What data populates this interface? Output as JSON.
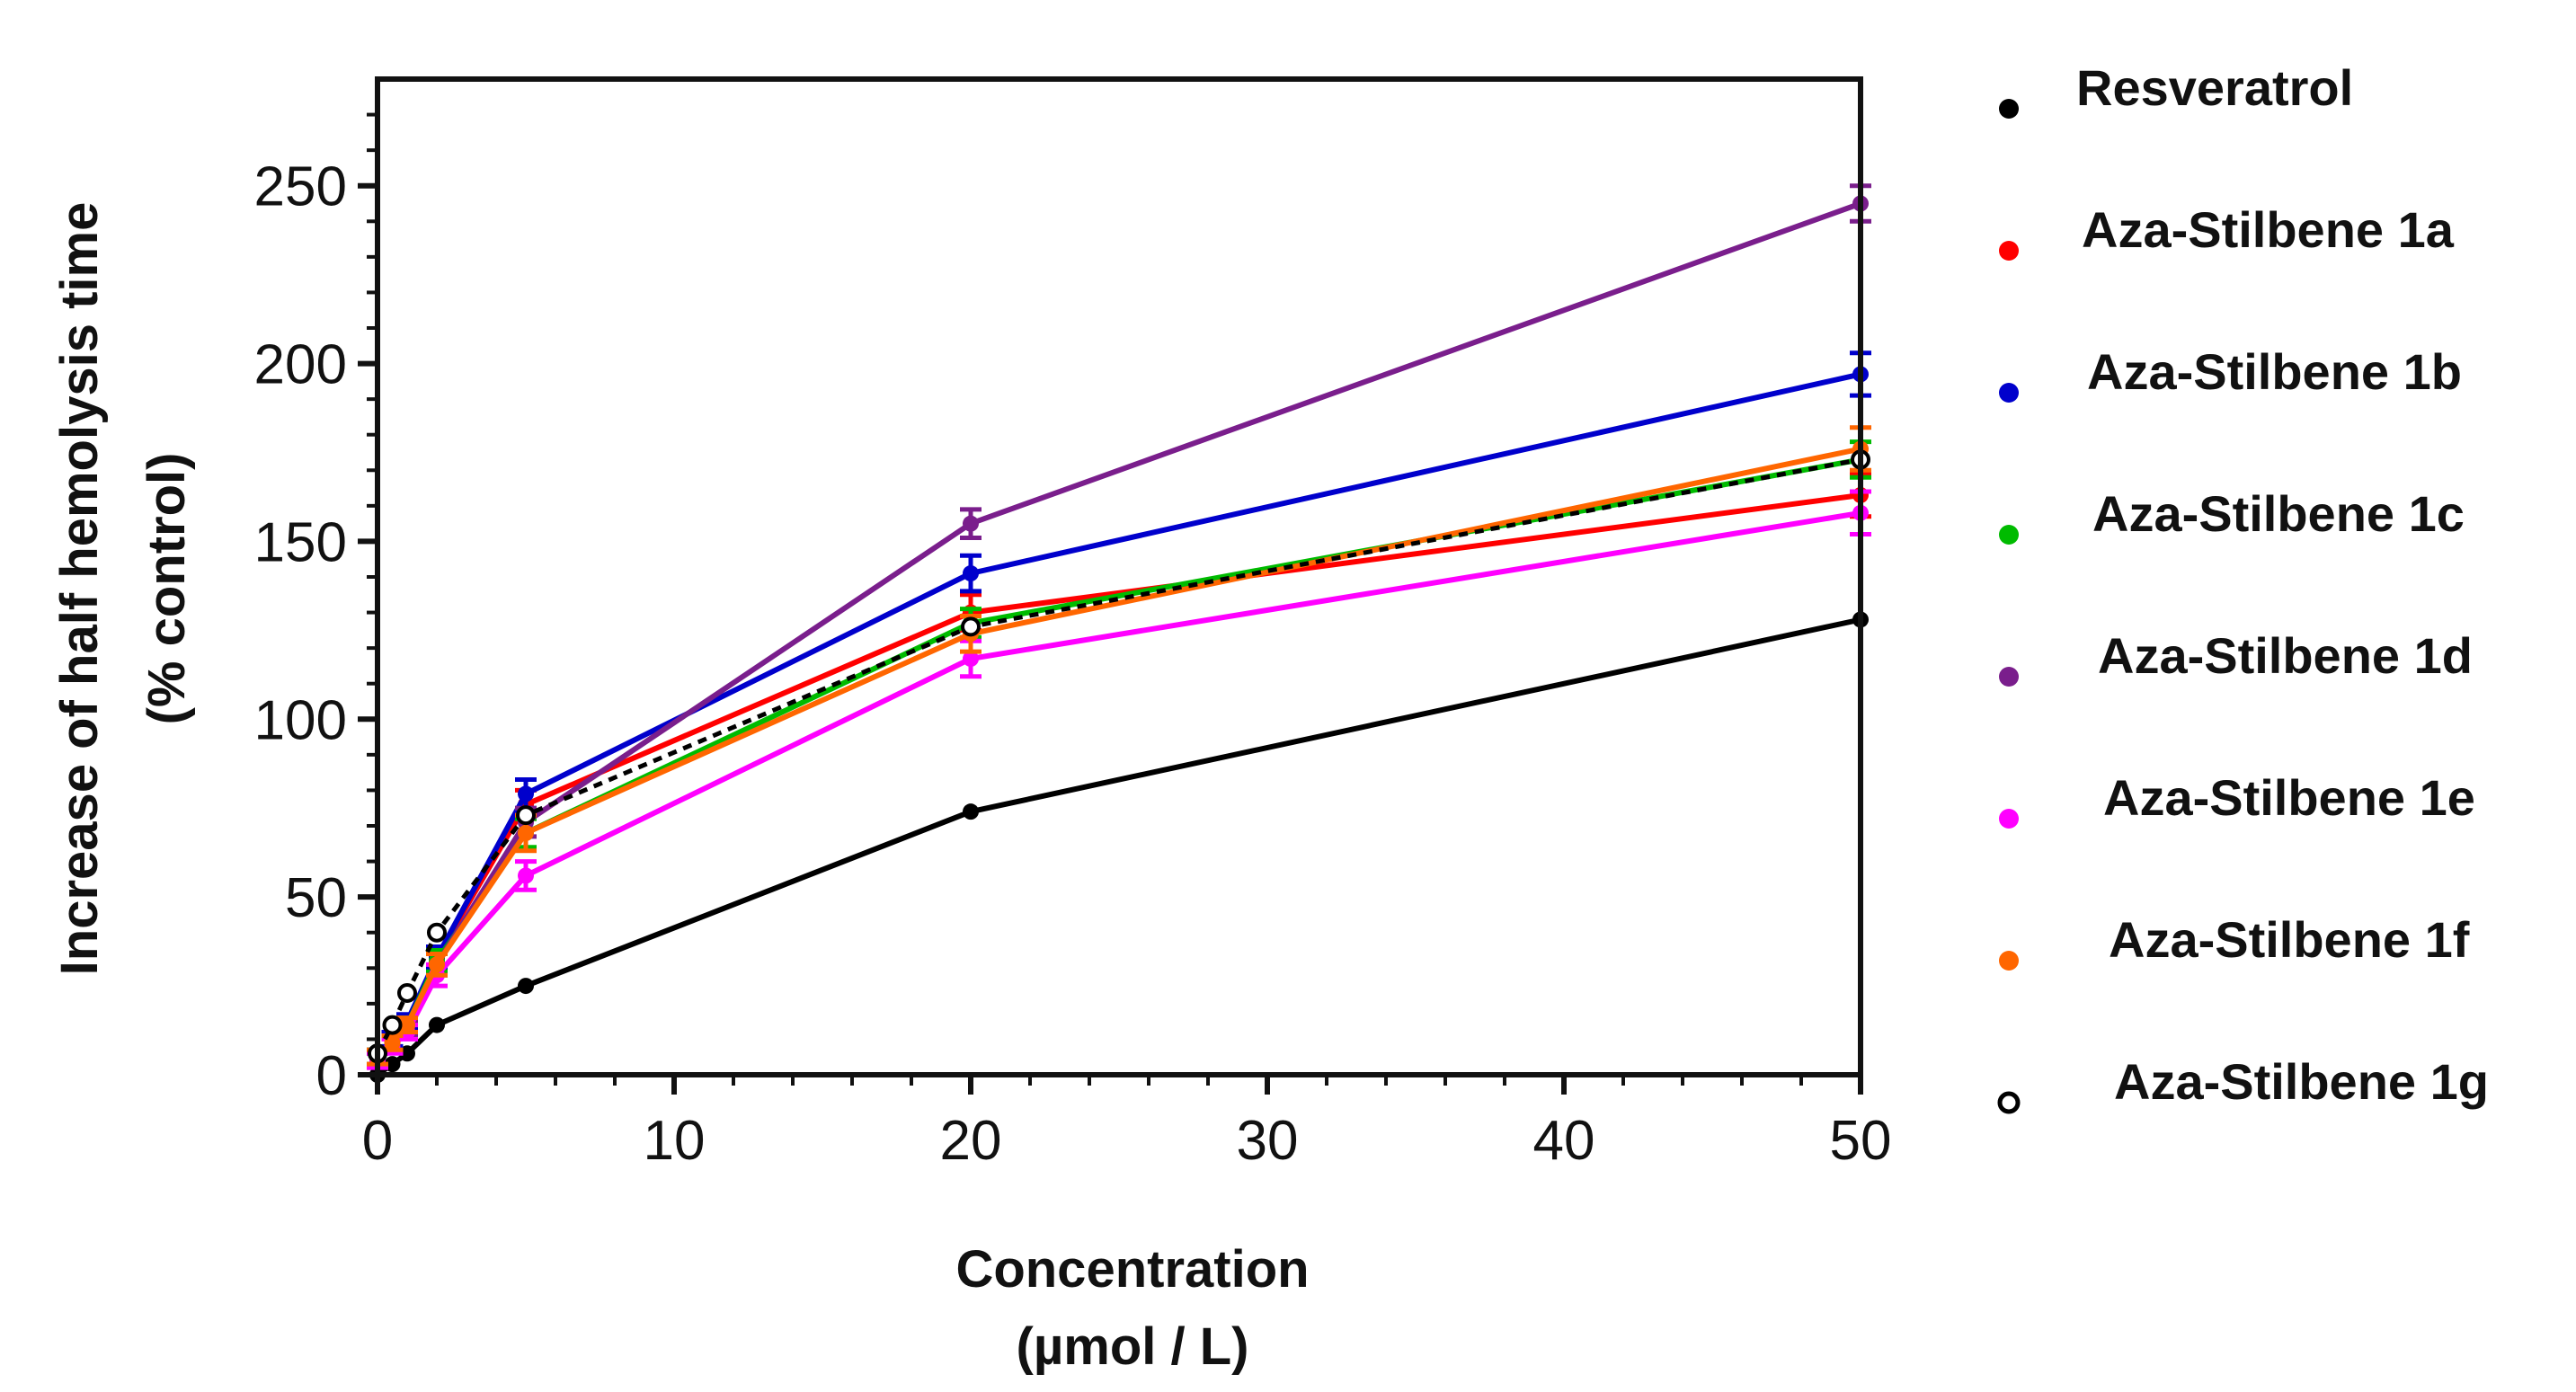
{
  "chart_data": {
    "type": "line",
    "title": "",
    "xlabel": [
      "Concentration",
      "(µmol / L)"
    ],
    "ylabel": [
      "Increase of half hemolysis time",
      "(% control)"
    ],
    "xlim": [
      0,
      50
    ],
    "ylim": [
      0,
      280
    ],
    "xticks": [
      "0",
      "10",
      "20",
      "30",
      "40",
      "50"
    ],
    "yticks": [
      "0",
      "50",
      "100",
      "150",
      "200",
      "250"
    ],
    "xtick_values": [
      0,
      10,
      20,
      30,
      40,
      50
    ],
    "ytick_values": [
      0,
      50,
      100,
      150,
      200,
      250
    ],
    "grid": false,
    "legend_position": "right",
    "x": [
      0,
      0.5,
      1,
      2,
      5,
      20,
      50
    ],
    "series": [
      {
        "name": "Resveratrol",
        "color": "#000000",
        "marker": "filled",
        "dash": false,
        "values": [
          0,
          3,
          6,
          14,
          25,
          74,
          128
        ],
        "err": [
          0,
          0,
          0,
          0,
          0,
          0,
          0
        ]
      },
      {
        "name": "Aza-Stilbene 1a",
        "color": "#ff0000",
        "marker": "filled",
        "dash": false,
        "values": [
          5,
          9,
          14,
          33,
          76,
          130,
          163
        ],
        "err": [
          2,
          2,
          2,
          3,
          4,
          5,
          6
        ]
      },
      {
        "name": "Aza-Stilbene 1b",
        "color": "#0000cc",
        "marker": "filled",
        "dash": false,
        "values": [
          5,
          10,
          15,
          33,
          79,
          141,
          197
        ],
        "err": [
          2,
          2,
          2,
          3,
          4,
          5,
          6
        ]
      },
      {
        "name": "Aza-Stilbene 1c",
        "color": "#00bb00",
        "marker": "filled",
        "dash": false,
        "values": [
          5,
          9,
          14,
          32,
          68,
          127,
          173
        ],
        "err": [
          2,
          2,
          2,
          3,
          4,
          4,
          5
        ]
      },
      {
        "name": "Aza-Stilbene 1d",
        "color": "#7a1e8c",
        "marker": "filled",
        "dash": false,
        "values": [
          4,
          9,
          13,
          31,
          71,
          155,
          245
        ],
        "err": [
          2,
          2,
          2,
          3,
          4,
          4,
          5
        ]
      },
      {
        "name": "Aza-Stilbene 1e",
        "color": "#ff00ff",
        "marker": "filled",
        "dash": false,
        "values": [
          4,
          8,
          12,
          28,
          56,
          117,
          158
        ],
        "err": [
          2,
          2,
          2,
          3,
          4,
          5,
          6
        ]
      },
      {
        "name": "Aza-Stilbene 1f",
        "color": "#ff6600",
        "marker": "filled",
        "dash": false,
        "values": [
          5,
          9,
          14,
          31,
          68,
          124,
          176
        ],
        "err": [
          2,
          2,
          2,
          3,
          5,
          5,
          6
        ]
      },
      {
        "name": "Aza-Stilbene 1g",
        "color": "#000000",
        "marker": "open",
        "dash": true,
        "values": [
          6,
          14,
          23,
          40,
          73,
          126,
          173
        ],
        "err": [
          0,
          0,
          0,
          0,
          0,
          0,
          0
        ]
      }
    ]
  }
}
